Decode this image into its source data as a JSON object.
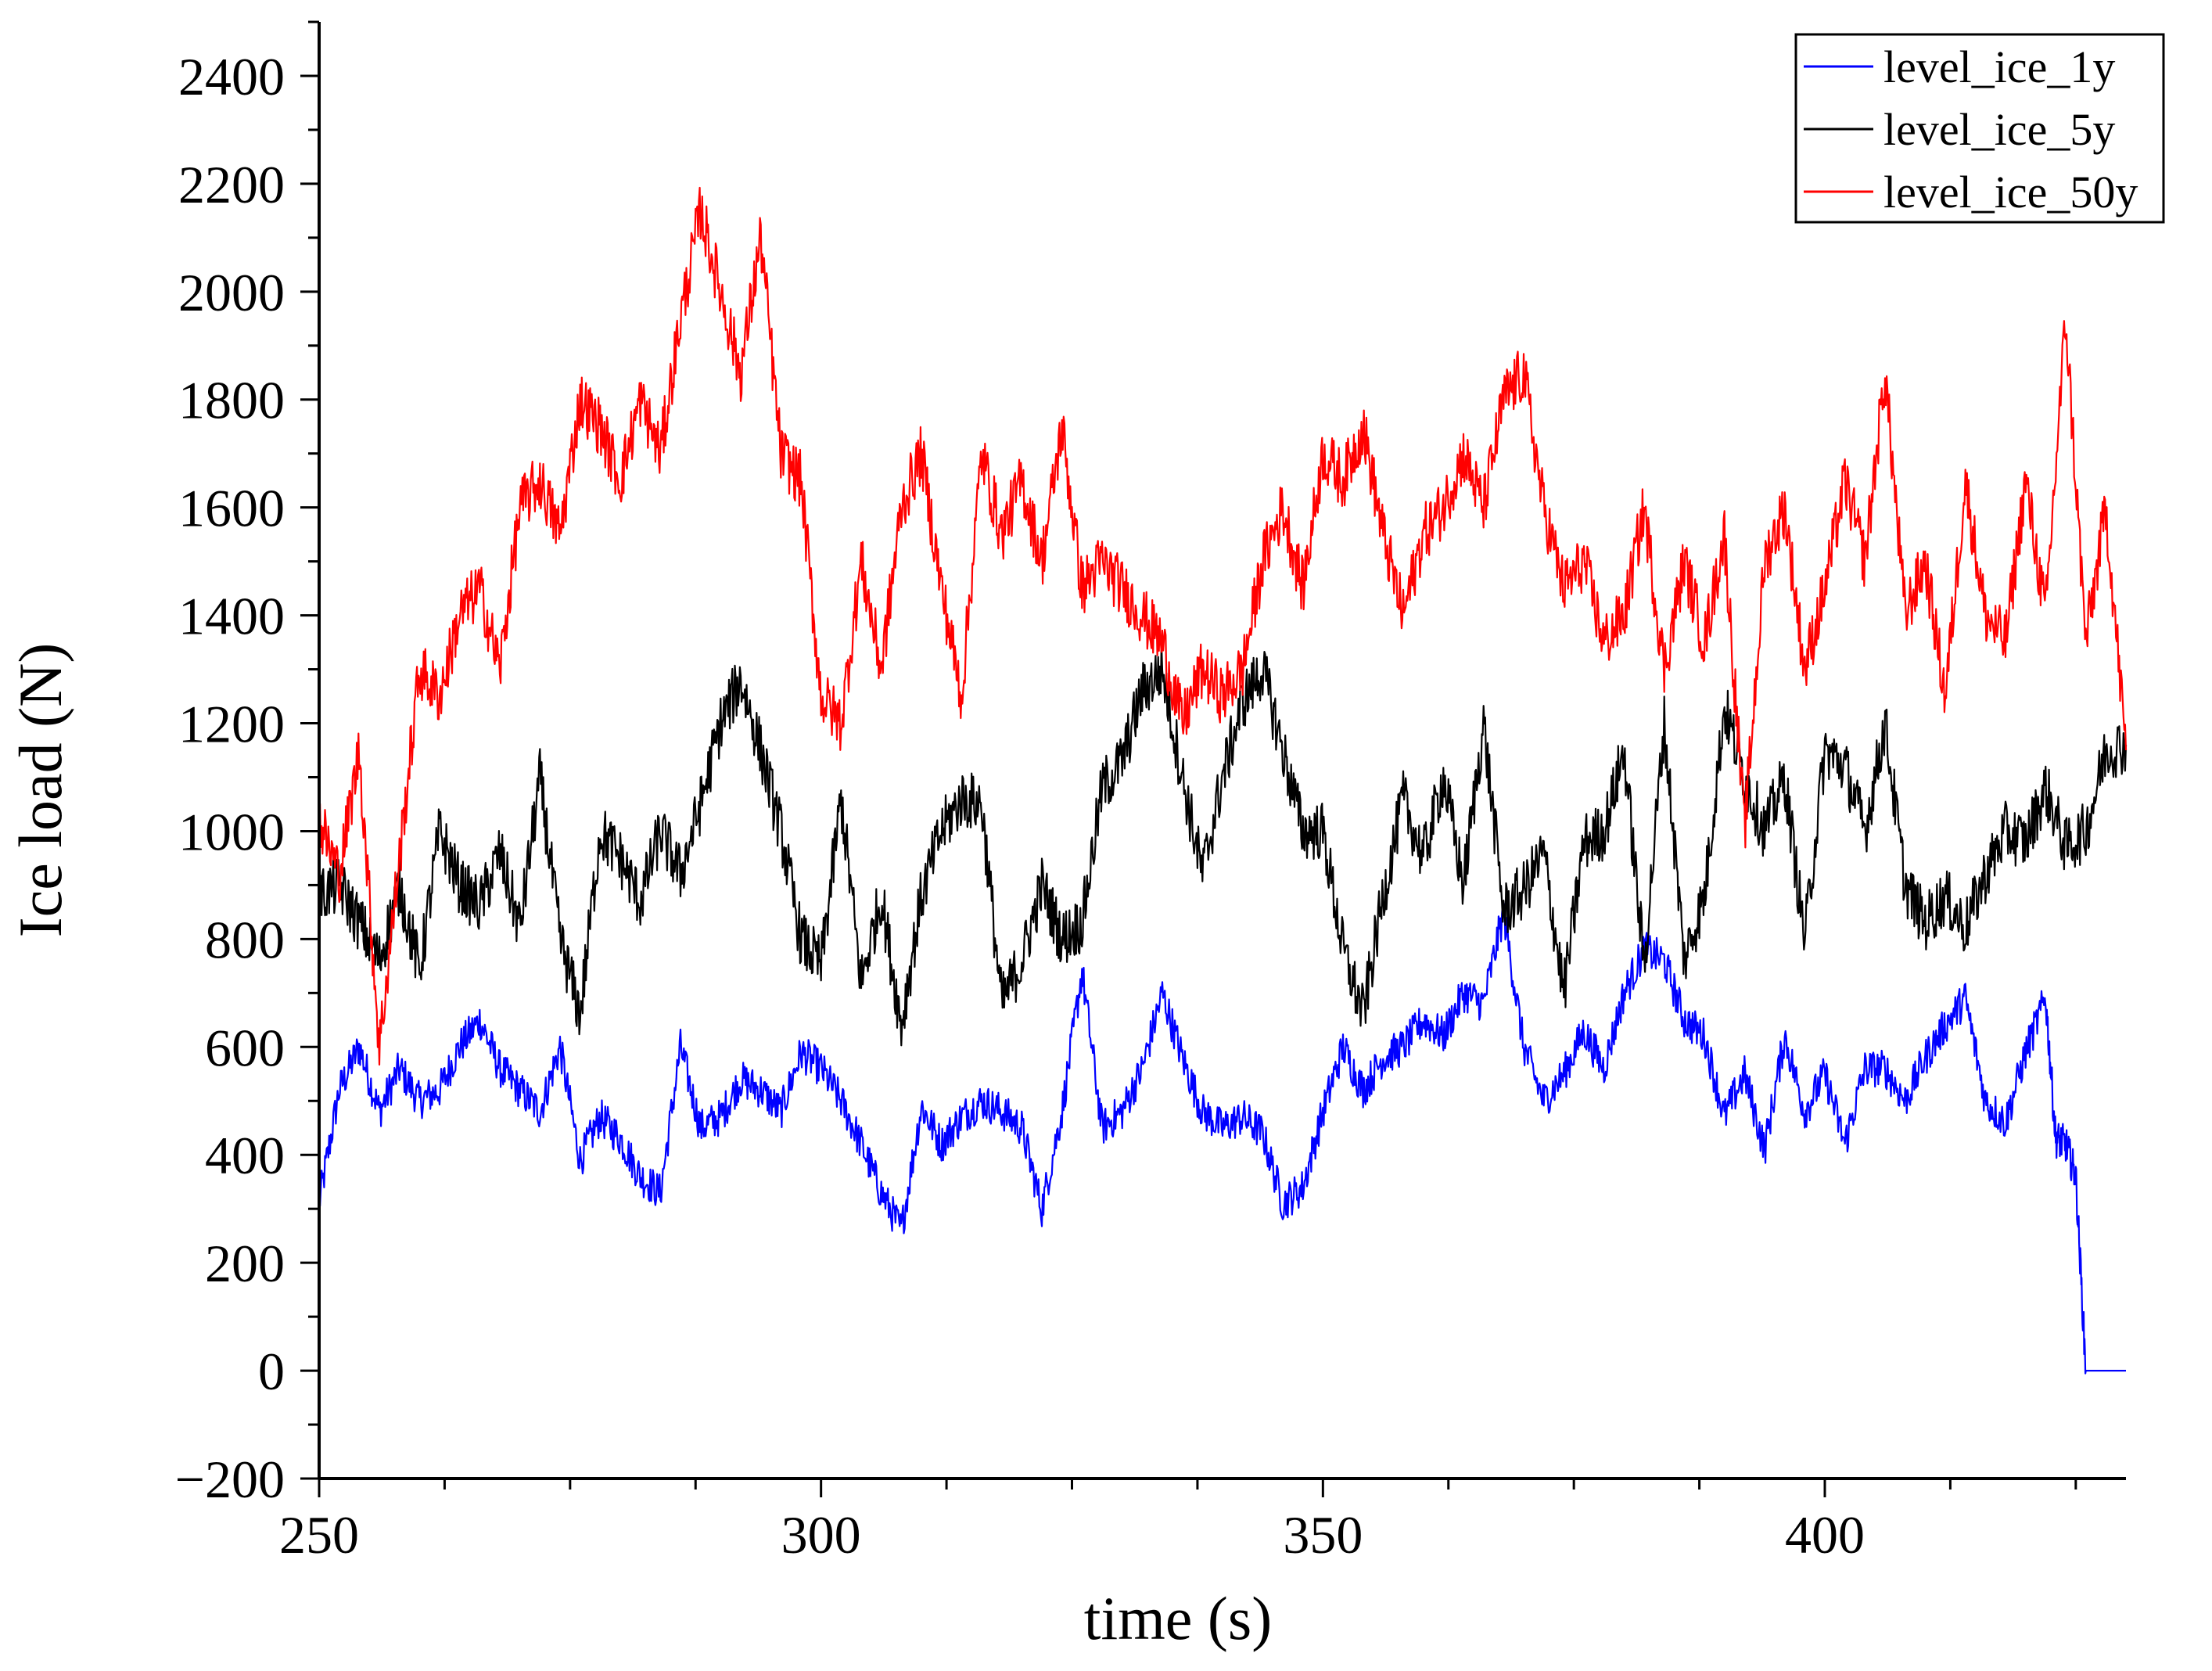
{
  "chart_data": {
    "type": "line",
    "title": "",
    "xlabel": "time (s)",
    "ylabel": "Ice load (N)",
    "xlim": [
      250,
      430
    ],
    "ylim": [
      -200,
      2500
    ],
    "xticks": [
      250,
      300,
      350,
      400
    ],
    "xtick_labels": [
      "250",
      "300",
      "350",
      "400"
    ],
    "yticks": [
      -200,
      0,
      200,
      400,
      600,
      800,
      1000,
      1200,
      1400,
      1600,
      1800,
      2000,
      2200,
      2400
    ],
    "ytick_labels": [
      "−200",
      "0",
      "200",
      "400",
      "600",
      "800",
      "1000",
      "1200",
      "1400",
      "1600",
      "1800",
      "2000",
      "2200",
      "2400"
    ],
    "grid": false,
    "legend_position": "top-right",
    "series": [
      {
        "name": "level_ice_1y",
        "color": "#0000ff",
        "x": [
          250,
          252,
          254,
          256,
          258,
          260,
          262,
          264,
          266,
          268,
          270,
          272,
          274,
          276,
          278,
          280,
          282,
          284,
          286,
          288,
          290,
          292,
          294,
          296,
          298,
          300,
          302,
          304,
          306,
          308,
          310,
          312,
          314,
          316,
          318,
          320,
          322,
          324,
          326,
          328,
          330,
          332,
          334,
          336,
          338,
          340,
          342,
          344,
          346,
          348,
          350,
          352,
          354,
          356,
          358,
          360,
          362,
          364,
          366,
          368,
          370,
          372,
          374,
          376,
          378,
          380,
          382,
          384,
          386,
          388,
          390,
          392,
          394,
          396,
          398,
          400,
          402,
          404,
          406,
          408,
          410,
          412,
          414,
          416,
          418,
          420,
          422,
          423,
          424,
          425,
          426,
          428,
          430
        ],
        "y": [
          310,
          520,
          600,
          480,
          560,
          500,
          520,
          600,
          650,
          560,
          520,
          480,
          600,
          390,
          470,
          430,
          360,
          330,
          600,
          450,
          470,
          540,
          520,
          480,
          590,
          560,
          500,
          420,
          330,
          260,
          490,
          420,
          470,
          500,
          480,
          450,
          300,
          480,
          740,
          450,
          480,
          560,
          700,
          580,
          480,
          450,
          470,
          440,
          310,
          340,
          480,
          600,
          520,
          580,
          600,
          650,
          620,
          700,
          680,
          850,
          600,
          500,
          550,
          630,
          560,
          700,
          780,
          760,
          650,
          620,
          470,
          550,
          410,
          620,
          480,
          550,
          420,
          560,
          560,
          500,
          580,
          640,
          690,
          500,
          460,
          590,
          690,
          430,
          420,
          360,
          0,
          0,
          0
        ]
      },
      {
        "name": "level_ice_5y",
        "color": "#000000",
        "x": [
          250,
          252,
          254,
          256,
          258,
          260,
          262,
          264,
          266,
          268,
          270,
          272,
          274,
          276,
          278,
          280,
          282,
          284,
          286,
          288,
          290,
          292,
          294,
          296,
          298,
          300,
          302,
          304,
          306,
          308,
          310,
          312,
          314,
          316,
          318,
          320,
          322,
          324,
          326,
          328,
          330,
          332,
          334,
          336,
          338,
          340,
          342,
          344,
          346,
          348,
          350,
          352,
          354,
          356,
          358,
          360,
          362,
          364,
          366,
          368,
          370,
          372,
          374,
          376,
          378,
          380,
          382,
          384,
          386,
          388,
          390,
          392,
          394,
          396,
          398,
          400,
          402,
          404,
          406,
          408,
          410,
          412,
          414,
          416,
          418,
          420,
          422,
          424,
          426,
          428,
          430
        ],
        "y": [
          880,
          900,
          830,
          760,
          900,
          740,
          1000,
          900,
          860,
          960,
          820,
          1100,
          800,
          660,
          1000,
          950,
          870,
          1000,
          920,
          1050,
          1200,
          1280,
          1150,
          1000,
          800,
          750,
          1060,
          720,
          880,
          640,
          880,
          1000,
          1060,
          1050,
          680,
          760,
          900,
          800,
          830,
          1080,
          1130,
          1260,
          1300,
          1100,
          920,
          1100,
          1240,
          1300,
          1150,
          1000,
          1000,
          780,
          660,
          880,
          1060,
          950,
          1100,
          900,
          1200,
          850,
          890,
          960,
          700,
          980,
          1000,
          1150,
          750,
          1200,
          760,
          880,
          1230,
          1100,
          1000,
          1100,
          800,
          1150,
          1120,
          1000,
          1200,
          900,
          830,
          880,
          820,
          920,
          1000,
          980,
          1080,
          970,
          1000,
          1150,
          1160
        ]
      },
      {
        "name": "level_ice_50y",
        "color": "#ff0000",
        "x": [
          250,
          252,
          254,
          256,
          258,
          260,
          262,
          264,
          266,
          268,
          270,
          272,
          274,
          276,
          278,
          280,
          282,
          284,
          286,
          288,
          290,
          292,
          294,
          296,
          298,
          300,
          302,
          304,
          306,
          308,
          310,
          312,
          314,
          316,
          318,
          320,
          322,
          324,
          326,
          328,
          330,
          332,
          334,
          336,
          338,
          340,
          342,
          344,
          346,
          348,
          350,
          352,
          354,
          356,
          358,
          360,
          362,
          364,
          366,
          368,
          370,
          372,
          374,
          376,
          378,
          380,
          382,
          384,
          386,
          388,
          390,
          392,
          394,
          396,
          398,
          400,
          402,
          404,
          406,
          408,
          410,
          412,
          414,
          416,
          418,
          420,
          422,
          424,
          426,
          428,
          430
        ],
        "y": [
          1020,
          920,
          1150,
          600,
          950,
          1300,
          1250,
          1400,
          1450,
          1300,
          1600,
          1650,
          1550,
          1800,
          1750,
          1650,
          1800,
          1700,
          1950,
          2150,
          2000,
          1850,
          2100,
          1700,
          1650,
          1250,
          1200,
          1500,
          1300,
          1600,
          1700,
          1450,
          1250,
          1700,
          1550,
          1650,
          1500,
          1750,
          1450,
          1500,
          1450,
          1400,
          1350,
          1200,
          1300,
          1250,
          1300,
          1500,
          1600,
          1450,
          1700,
          1650,
          1750,
          1550,
          1400,
          1550,
          1600,
          1700,
          1600,
          1800,
          1850,
          1600,
          1450,
          1500,
          1350,
          1400,
          1600,
          1300,
          1500,
          1350,
          1550,
          1000,
          1500,
          1600,
          1300,
          1450,
          1650,
          1500,
          1850,
          1400,
          1500,
          1250,
          1650,
          1400,
          1350,
          1650,
          1400,
          1950,
          1350,
          1600,
          1150
        ]
      }
    ]
  }
}
